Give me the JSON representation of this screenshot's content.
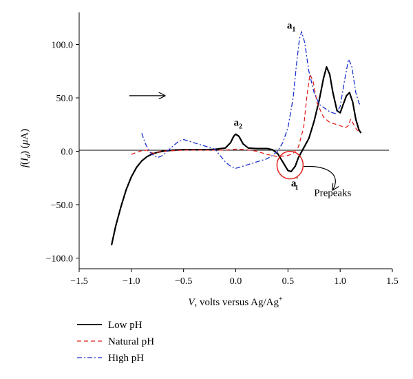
{
  "chart_data": {
    "type": "line",
    "title": "",
    "xlabel_parts": {
      "var": "V",
      "rest": ", volts versus Ag/Ag",
      "sup": "+"
    },
    "ylabel_parts": {
      "f": "f",
      "open": "(",
      "I": "I",
      "sub": "d",
      "close": ")",
      "unit_open": " (",
      "mu": "μ",
      "unit": "A)"
    },
    "xlim": [
      -1.5,
      1.5
    ],
    "ylim": [
      -110,
      130
    ],
    "x_ticks": [
      -1.5,
      -1.0,
      -0.5,
      0.0,
      0.5,
      1.0,
      1.5
    ],
    "x_tick_labels": [
      "−1.5",
      "−1.0",
      "−0.5",
      "0.0",
      "0.5",
      "1.0",
      "1.5"
    ],
    "y_ticks": [
      -100,
      -50,
      0,
      50,
      100
    ],
    "y_tick_labels": [
      "−100.0",
      "−50.0",
      "0.0",
      "50.0",
      "100.0"
    ],
    "grid": false,
    "legend_position": "bottom-left, below the plot",
    "series": [
      {
        "name": "Low pH",
        "color": "#000000",
        "style": "solid",
        "points": [
          [
            -1.19,
            -88
          ],
          [
            -1.15,
            -70
          ],
          [
            -1.1,
            -52
          ],
          [
            -1.05,
            -36
          ],
          [
            -1.0,
            -24
          ],
          [
            -0.95,
            -15
          ],
          [
            -0.9,
            -9
          ],
          [
            -0.85,
            -5
          ],
          [
            -0.8,
            -2.5
          ],
          [
            -0.75,
            -1
          ],
          [
            -0.7,
            0
          ],
          [
            -0.6,
            1
          ],
          [
            -0.5,
            1.5
          ],
          [
            -0.4,
            1.5
          ],
          [
            -0.3,
            1.5
          ],
          [
            -0.2,
            1.8
          ],
          [
            -0.1,
            3
          ],
          [
            -0.05,
            8
          ],
          [
            -0.02,
            14
          ],
          [
            0.0,
            16
          ],
          [
            0.03,
            14
          ],
          [
            0.07,
            7
          ],
          [
            0.12,
            3
          ],
          [
            0.2,
            2.5
          ],
          [
            0.3,
            2.5
          ],
          [
            0.35,
            1.5
          ],
          [
            0.4,
            -2
          ],
          [
            0.45,
            -10
          ],
          [
            0.5,
            -18
          ],
          [
            0.53,
            -19
          ],
          [
            0.57,
            -14
          ],
          [
            0.6,
            -6
          ],
          [
            0.65,
            3
          ],
          [
            0.7,
            12
          ],
          [
            0.75,
            28
          ],
          [
            0.8,
            48
          ],
          [
            0.84,
            68
          ],
          [
            0.87,
            79
          ],
          [
            0.9,
            72
          ],
          [
            0.93,
            55
          ],
          [
            0.97,
            38
          ],
          [
            1.0,
            36
          ],
          [
            1.03,
            44
          ],
          [
            1.06,
            52
          ],
          [
            1.09,
            55
          ],
          [
            1.12,
            46
          ],
          [
            1.15,
            30
          ],
          [
            1.18,
            20
          ],
          [
            1.2,
            17
          ]
        ]
      },
      {
        "name": "Natural pH",
        "color": "#e0201b",
        "style": "dashed",
        "points": [
          [
            -1.0,
            -3
          ],
          [
            -0.95,
            -1
          ],
          [
            -0.9,
            0.5
          ],
          [
            -0.85,
            1
          ],
          [
            -0.82,
            -1
          ],
          [
            -0.78,
            -2
          ],
          [
            -0.75,
            -1
          ],
          [
            -0.7,
            0
          ],
          [
            -0.5,
            1
          ],
          [
            -0.3,
            1
          ],
          [
            -0.1,
            1
          ],
          [
            0.0,
            2
          ],
          [
            0.1,
            1.5
          ],
          [
            0.2,
            0
          ],
          [
            0.3,
            -3
          ],
          [
            0.4,
            -5
          ],
          [
            0.5,
            -4
          ],
          [
            0.55,
            -2
          ],
          [
            0.6,
            4
          ],
          [
            0.65,
            22
          ],
          [
            0.68,
            50
          ],
          [
            0.71,
            72
          ],
          [
            0.74,
            66
          ],
          [
            0.78,
            45
          ],
          [
            0.84,
            32
          ],
          [
            0.9,
            27
          ],
          [
            1.0,
            24
          ],
          [
            1.05,
            22
          ],
          [
            1.08,
            24
          ],
          [
            1.1,
            30
          ],
          [
            1.13,
            25
          ],
          [
            1.16,
            20
          ],
          [
            1.2,
            18
          ]
        ]
      },
      {
        "name": "High pH",
        "color": "#1a2ecc",
        "style": "dashdot",
        "points": [
          [
            -0.9,
            17
          ],
          [
            -0.87,
            8
          ],
          [
            -0.83,
            0
          ],
          [
            -0.8,
            -3
          ],
          [
            -0.75,
            -6
          ],
          [
            -0.7,
            -4
          ],
          [
            -0.6,
            5
          ],
          [
            -0.55,
            9
          ],
          [
            -0.5,
            11
          ],
          [
            -0.4,
            8
          ],
          [
            -0.3,
            5
          ],
          [
            -0.2,
            2
          ],
          [
            -0.15,
            -4
          ],
          [
            -0.1,
            -10
          ],
          [
            -0.05,
            -14
          ],
          [
            0.0,
            -16
          ],
          [
            0.1,
            -13
          ],
          [
            0.2,
            -10
          ],
          [
            0.3,
            -7
          ],
          [
            0.35,
            -4
          ],
          [
            0.4,
            0
          ],
          [
            0.45,
            8
          ],
          [
            0.5,
            22
          ],
          [
            0.55,
            50
          ],
          [
            0.58,
            80
          ],
          [
            0.61,
            105
          ],
          [
            0.63,
            112
          ],
          [
            0.66,
            102
          ],
          [
            0.7,
            75
          ],
          [
            0.75,
            55
          ],
          [
            0.8,
            44
          ],
          [
            0.9,
            37
          ],
          [
            0.96,
            35
          ],
          [
            1.0,
            42
          ],
          [
            1.04,
            65
          ],
          [
            1.08,
            86
          ],
          [
            1.11,
            80
          ],
          [
            1.15,
            55
          ],
          [
            1.18,
            45
          ],
          [
            1.2,
            43
          ]
        ]
      }
    ],
    "annotations": {
      "a1": {
        "label": "a",
        "sub": "1",
        "x": 0.49,
        "y": 115
      },
      "a2": {
        "label": "a",
        "sub": "2",
        "x": -0.02,
        "y": 24
      },
      "a1_prime": {
        "label": "a",
        "sub": "1",
        "prime": "′",
        "x": 0.53,
        "y": -33
      },
      "prepeaks": {
        "text": "Prepeaks",
        "x": 0.75,
        "y": -42
      },
      "circle_center": [
        0.52,
        -13
      ],
      "arrow_from": [
        -1.02,
        52
      ],
      "arrow_to": [
        -0.68,
        52
      ]
    }
  }
}
